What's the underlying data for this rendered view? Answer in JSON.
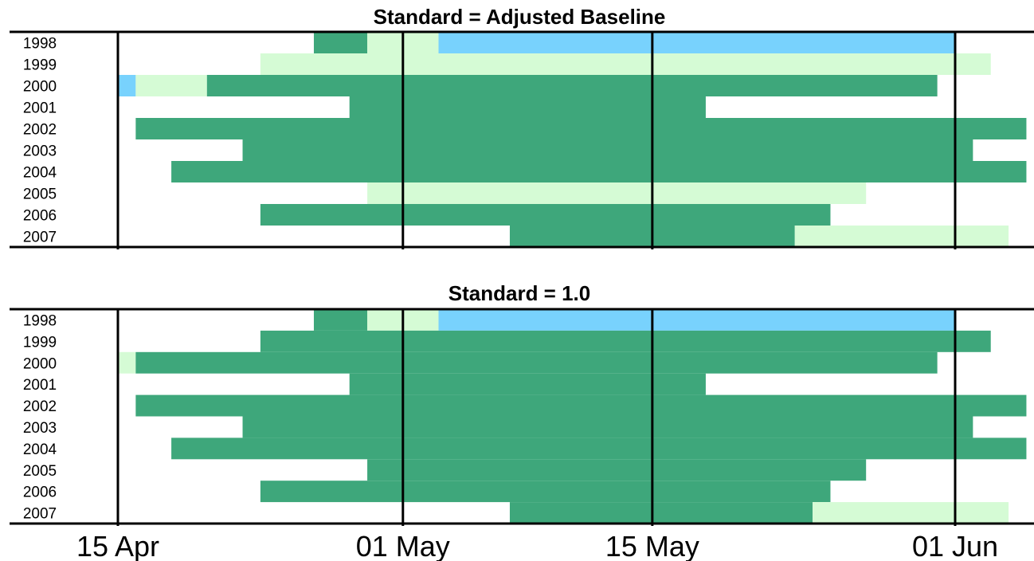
{
  "chart_data": {
    "type": "bar",
    "x_ticks": [
      "15 Apr",
      "01 May",
      "15 May",
      "01 Jun"
    ],
    "x_tick_dates": [
      "2000-04-15",
      "2000-05-01",
      "2000-05-15",
      "2000-06-01"
    ],
    "xlim": [
      "2000-04-11",
      "2000-06-05"
    ],
    "colors": {
      "dark_green": "#3ea77b",
      "light_green": "#d5fbd5",
      "blue": "#78d2fd"
    },
    "panels": [
      {
        "title": "Standard = Adjusted Baseline",
        "years": [
          "1998",
          "1999",
          "2000",
          "2001",
          "2002",
          "2003",
          "2004",
          "2005",
          "2006",
          "2007"
        ],
        "rows": [
          {
            "year": "1998",
            "segments": [
              {
                "start": "2000-04-26",
                "end": "2000-04-29",
                "color": "dark_green"
              },
              {
                "start": "2000-04-29",
                "end": "2000-05-03",
                "color": "light_green"
              },
              {
                "start": "2000-05-03",
                "end": "2000-06-01",
                "color": "blue"
              }
            ]
          },
          {
            "year": "1999",
            "segments": [
              {
                "start": "2000-04-23",
                "end": "2000-06-03",
                "color": "light_green"
              }
            ]
          },
          {
            "year": "2000",
            "segments": [
              {
                "start": "2000-04-15",
                "end": "2000-04-16",
                "color": "blue"
              },
              {
                "start": "2000-04-16",
                "end": "2000-04-20",
                "color": "light_green"
              },
              {
                "start": "2000-04-20",
                "end": "2000-05-31",
                "color": "dark_green"
              }
            ]
          },
          {
            "year": "2001",
            "segments": [
              {
                "start": "2000-04-28",
                "end": "2000-05-18",
                "color": "dark_green"
              }
            ]
          },
          {
            "year": "2002",
            "segments": [
              {
                "start": "2000-04-16",
                "end": "2000-06-05",
                "color": "dark_green"
              }
            ]
          },
          {
            "year": "2003",
            "segments": [
              {
                "start": "2000-04-22",
                "end": "2000-06-02",
                "color": "dark_green"
              }
            ]
          },
          {
            "year": "2004",
            "segments": [
              {
                "start": "2000-04-18",
                "end": "2000-06-05",
                "color": "dark_green"
              }
            ]
          },
          {
            "year": "2005",
            "segments": [
              {
                "start": "2000-04-29",
                "end": "2000-05-27",
                "color": "light_green"
              }
            ]
          },
          {
            "year": "2006",
            "segments": [
              {
                "start": "2000-04-23",
                "end": "2000-05-25",
                "color": "dark_green"
              }
            ]
          },
          {
            "year": "2007",
            "segments": [
              {
                "start": "2000-05-07",
                "end": "2000-05-23",
                "color": "dark_green"
              },
              {
                "start": "2000-05-23",
                "end": "2000-06-04",
                "color": "light_green"
              }
            ]
          }
        ]
      },
      {
        "title": "Standard = 1.0",
        "years": [
          "1998",
          "1999",
          "2000",
          "2001",
          "2002",
          "2003",
          "2004",
          "2005",
          "2006",
          "2007"
        ],
        "rows": [
          {
            "year": "1998",
            "segments": [
              {
                "start": "2000-04-26",
                "end": "2000-04-29",
                "color": "dark_green"
              },
              {
                "start": "2000-04-29",
                "end": "2000-05-03",
                "color": "light_green"
              },
              {
                "start": "2000-05-03",
                "end": "2000-06-01",
                "color": "blue"
              }
            ]
          },
          {
            "year": "1999",
            "segments": [
              {
                "start": "2000-04-23",
                "end": "2000-06-03",
                "color": "dark_green"
              }
            ]
          },
          {
            "year": "2000",
            "segments": [
              {
                "start": "2000-04-15",
                "end": "2000-04-16",
                "color": "light_green"
              },
              {
                "start": "2000-04-16",
                "end": "2000-05-31",
                "color": "dark_green"
              }
            ]
          },
          {
            "year": "2001",
            "segments": [
              {
                "start": "2000-04-28",
                "end": "2000-05-18",
                "color": "dark_green"
              }
            ]
          },
          {
            "year": "2002",
            "segments": [
              {
                "start": "2000-04-16",
                "end": "2000-06-05",
                "color": "dark_green"
              }
            ]
          },
          {
            "year": "2003",
            "segments": [
              {
                "start": "2000-04-22",
                "end": "2000-06-02",
                "color": "dark_green"
              }
            ]
          },
          {
            "year": "2004",
            "segments": [
              {
                "start": "2000-04-18",
                "end": "2000-06-05",
                "color": "dark_green"
              }
            ]
          },
          {
            "year": "2005",
            "segments": [
              {
                "start": "2000-04-29",
                "end": "2000-05-27",
                "color": "dark_green"
              }
            ]
          },
          {
            "year": "2006",
            "segments": [
              {
                "start": "2000-04-23",
                "end": "2000-05-25",
                "color": "dark_green"
              }
            ]
          },
          {
            "year": "2007",
            "segments": [
              {
                "start": "2000-05-07",
                "end": "2000-05-24",
                "color": "dark_green"
              },
              {
                "start": "2000-05-24",
                "end": "2000-06-04",
                "color": "light_green"
              }
            ]
          }
        ]
      }
    ]
  }
}
